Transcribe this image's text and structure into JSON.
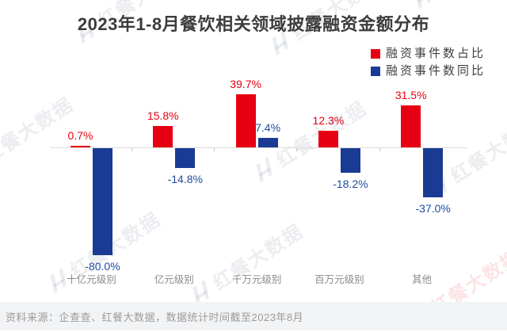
{
  "title": "2023年1-8月餐饮相关领域披露融资金额分布",
  "legend": {
    "items": [
      {
        "label": "融资事件数占比",
        "color": "#e60012"
      },
      {
        "label": "融资事件数同比",
        "color": "#1a3b94"
      }
    ]
  },
  "chart_data": {
    "type": "bar",
    "title": "2023年1-8月餐饮相关领域披露融资金额分布",
    "categories": [
      "十亿元级别",
      "亿元级别",
      "千万元级别",
      "百万元级别",
      "其他"
    ],
    "series": [
      {
        "name": "融资事件数占比",
        "color": "#e60012",
        "values": [
          0.7,
          15.8,
          39.7,
          12.3,
          31.5
        ]
      },
      {
        "name": "融资事件数同比",
        "color": "#1a3b94",
        "values": [
          -80.0,
          -14.8,
          7.4,
          -18.2,
          -37.0
        ]
      }
    ],
    "unit": "%",
    "ylim": [
      -90,
      45
    ],
    "grid": false,
    "legend_position": "top-right",
    "value_label_format": "one_decimal_percent"
  },
  "watermark": {
    "text": "红餐大数据"
  },
  "footer": {
    "source": "资料来源：企查查、红餐大数据，数据统计时间截至2023年8月"
  },
  "colors": {
    "red": "#e60012",
    "blue_bar": "#1a3b94",
    "blue_text": "#1e4a9e",
    "title_text": "#3c3c3c",
    "category_text": "#8a8a8a",
    "axis_line": "#dcdcdc",
    "footer_bg": "#f2f3f5",
    "footer_text": "#9b9b9b"
  }
}
